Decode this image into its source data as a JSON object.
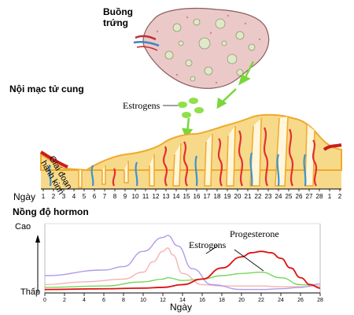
{
  "labels": {
    "ovary": "Buồng\ntrứng",
    "endometrium": "Nội mạc tử cung",
    "estrogens_top": "Estrogens",
    "menstruation": "Giai đoạn\nhành kinh",
    "day_axis_title": "Ngày",
    "hormone_title": "Nồng độ hormon",
    "high": "Cao",
    "low": "Thấp",
    "progesterone": "Progesterone",
    "estrogens_chart": "Estrogens",
    "x_title": "Ngày"
  },
  "cycle_days": [
    "1",
    "2",
    "3",
    "4",
    "5",
    "6",
    "7",
    "8",
    "9",
    "10",
    "11",
    "12",
    "13",
    "14",
    "15",
    "16",
    "17",
    "18",
    "19",
    "20",
    "21",
    "22",
    "23",
    "24",
    "25",
    "26",
    "27",
    "28",
    "1",
    "2"
  ],
  "chart_data": {
    "type": "line",
    "title": "Nồng độ hormon",
    "xlabel": "Ngày",
    "ylabel": "",
    "x_ticks": [
      0,
      2,
      4,
      6,
      8,
      10,
      12,
      14,
      16,
      18,
      20,
      22,
      24,
      26,
      28
    ],
    "xlim": [
      0,
      28
    ],
    "y_tick_labels": [
      "Thấp",
      "Cao"
    ],
    "ylim": [
      0,
      1
    ],
    "series": [
      {
        "name": "Estrogens",
        "color": "#b09ae8",
        "x": [
          0,
          6,
          8,
          10,
          12,
          12.5,
          13.5,
          15,
          17,
          20,
          22,
          24,
          26,
          28
        ],
        "y": [
          0.25,
          0.33,
          0.38,
          0.6,
          0.8,
          0.83,
          0.68,
          0.35,
          0.12,
          0.05,
          0.05,
          0.06,
          0.08,
          0.13
        ]
      },
      {
        "name": "Progesterone",
        "color": "#dd1111",
        "x": [
          0,
          6,
          10,
          12,
          14,
          16,
          18,
          20,
          21,
          22,
          23,
          24,
          25,
          26,
          27,
          28
        ],
        "y": [
          0.05,
          0.06,
          0.07,
          0.08,
          0.12,
          0.2,
          0.36,
          0.52,
          0.58,
          0.6,
          0.58,
          0.5,
          0.36,
          0.22,
          0.12,
          0.07
        ]
      },
      {
        "name": "",
        "color": "#76d65a",
        "x": [
          0,
          6,
          10,
          12,
          12.5,
          14,
          16,
          18,
          20,
          22,
          24,
          26,
          28
        ],
        "y": [
          0.08,
          0.1,
          0.16,
          0.2,
          0.22,
          0.18,
          0.2,
          0.25,
          0.28,
          0.3,
          0.22,
          0.12,
          0.1
        ]
      },
      {
        "name": "",
        "color": "#f4b3b3",
        "x": [
          0,
          4,
          8,
          10,
          11,
          12,
          12.5,
          13,
          14,
          16,
          18,
          20,
          22,
          24,
          26,
          28
        ],
        "y": [
          0.12,
          0.16,
          0.2,
          0.3,
          0.45,
          0.6,
          0.65,
          0.55,
          0.28,
          0.12,
          0.1,
          0.1,
          0.1,
          0.09,
          0.09,
          0.1
        ]
      }
    ]
  }
}
